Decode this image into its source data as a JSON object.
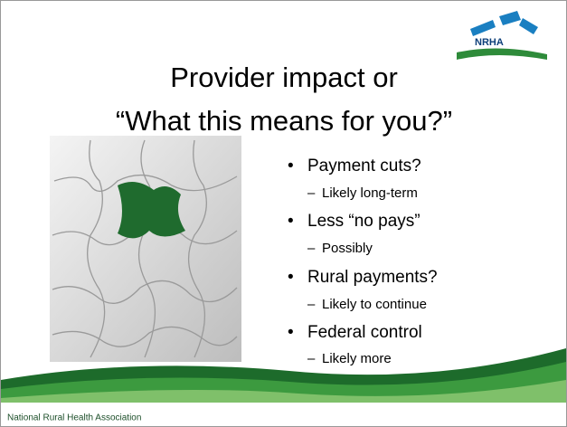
{
  "title": {
    "line1": "Provider impact or",
    "line2": "“What this means for you?”"
  },
  "logo": "NRHA",
  "bullets": [
    {
      "text": "Payment cuts?",
      "sub": "Likely long-term"
    },
    {
      "text": "Less “no pays”",
      "sub": "Possibly"
    },
    {
      "text": "Rural payments?",
      "sub": "Likely to continue"
    },
    {
      "text": "Federal control",
      "sub": "Likely more"
    }
  ],
  "footer": "National Rural Health Association"
}
